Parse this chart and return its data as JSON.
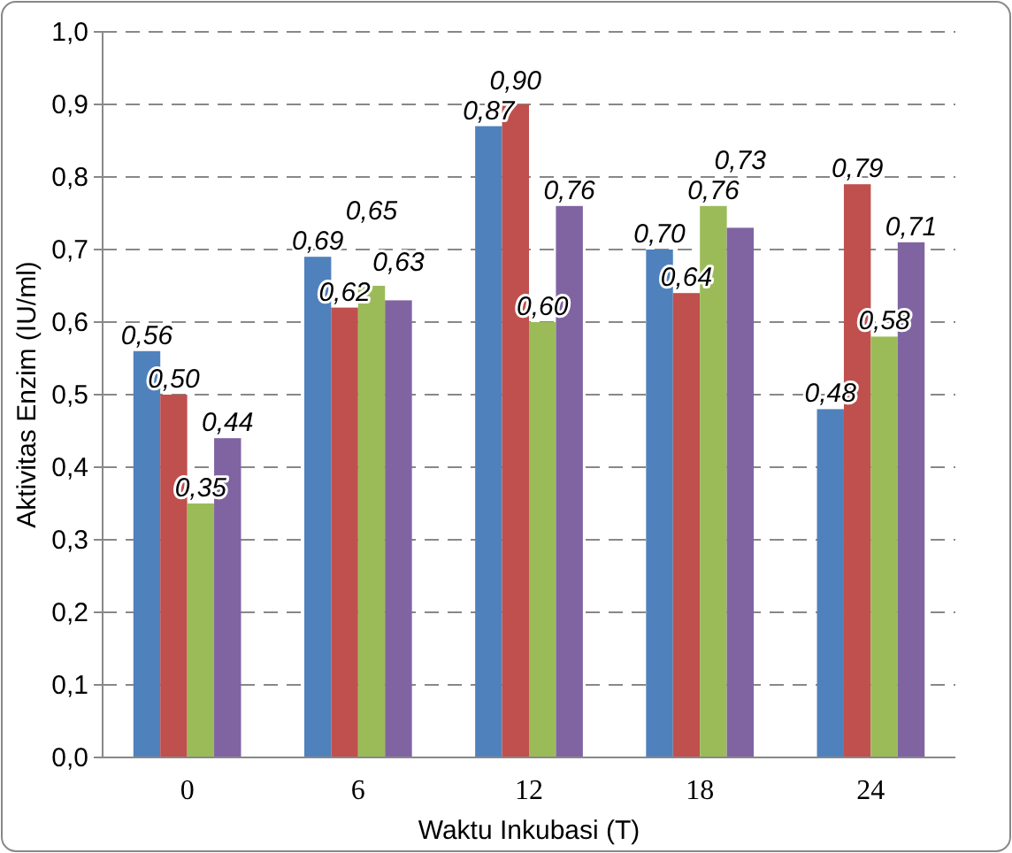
{
  "chart_data": {
    "type": "bar",
    "xlabel": "Waktu Inkubasi (T)",
    "ylabel": "Aktivitas Enzim (IU/ml)",
    "categories": [
      "0",
      "6",
      "12",
      "18",
      "24"
    ],
    "series": [
      {
        "color": "#4f81bd",
        "values": [
          0.56,
          0.69,
          0.87,
          0.7,
          0.48
        ],
        "value_labels": [
          "0,56",
          "0,69",
          "0,87",
          "0,70",
          "0,48"
        ]
      },
      {
        "color": "#c0504d",
        "values": [
          0.5,
          0.62,
          0.9,
          0.64,
          0.79
        ],
        "value_labels": [
          "0,50",
          "0,62",
          "0,90",
          "0,64",
          "0,79"
        ]
      },
      {
        "color": "#9bbb59",
        "values": [
          0.35,
          0.65,
          0.6,
          0.76,
          0.58
        ],
        "value_labels": [
          "0,35",
          "0,65",
          "0,60",
          "0,76",
          "0,58"
        ]
      },
      {
        "color": "#8064a2",
        "values": [
          0.44,
          0.63,
          0.76,
          0.73,
          0.71
        ],
        "value_labels": [
          "0,44",
          "0,63",
          "0,76",
          "0,73",
          "0,71"
        ]
      }
    ],
    "ylim": [
      0,
      1
    ],
    "yticks": [
      {
        "value": 0,
        "label": "0,0"
      },
      {
        "value": 0.1,
        "label": "0,1"
      },
      {
        "value": 0.2,
        "label": "0,2"
      },
      {
        "value": 0.3,
        "label": "0,3"
      },
      {
        "value": 0.4,
        "label": "0,4"
      },
      {
        "value": 0.5,
        "label": "0,5"
      },
      {
        "value": 0.6,
        "label": "0,6"
      },
      {
        "value": 0.7,
        "label": "0,7"
      },
      {
        "value": 0.8,
        "label": "0,8"
      },
      {
        "value": 0.9,
        "label": "0,9"
      },
      {
        "value": 1,
        "label": "1,0"
      }
    ],
    "grid": "y"
  }
}
